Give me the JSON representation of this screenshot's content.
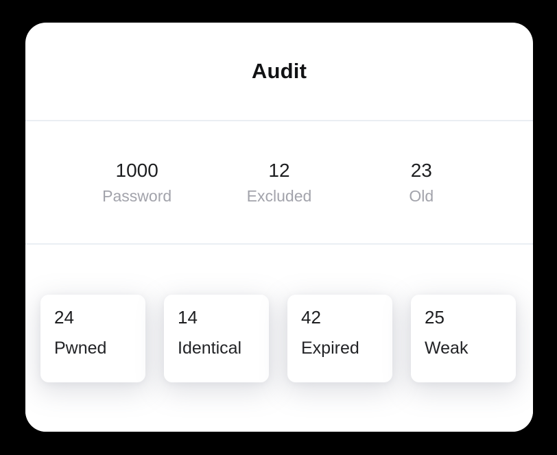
{
  "card": {
    "title": "Audit"
  },
  "stats": [
    {
      "value": "1000",
      "label": "Password"
    },
    {
      "value": "12",
      "label": "Excluded"
    },
    {
      "value": "23",
      "label": "Old"
    }
  ],
  "tiles": [
    {
      "value": "24",
      "label": "Pwned"
    },
    {
      "value": "14",
      "label": "Identical"
    },
    {
      "value": "42",
      "label": "Expired"
    },
    {
      "value": "25",
      "label": "Weak"
    }
  ],
  "colors": {
    "page_background": "#000000",
    "card_background": "#ffffff",
    "divider": "#eaeef3",
    "text_primary": "#1d1e20",
    "text_muted": "#a2a3ab",
    "tile_shadow": "rgba(125,128,145,0.24)"
  }
}
